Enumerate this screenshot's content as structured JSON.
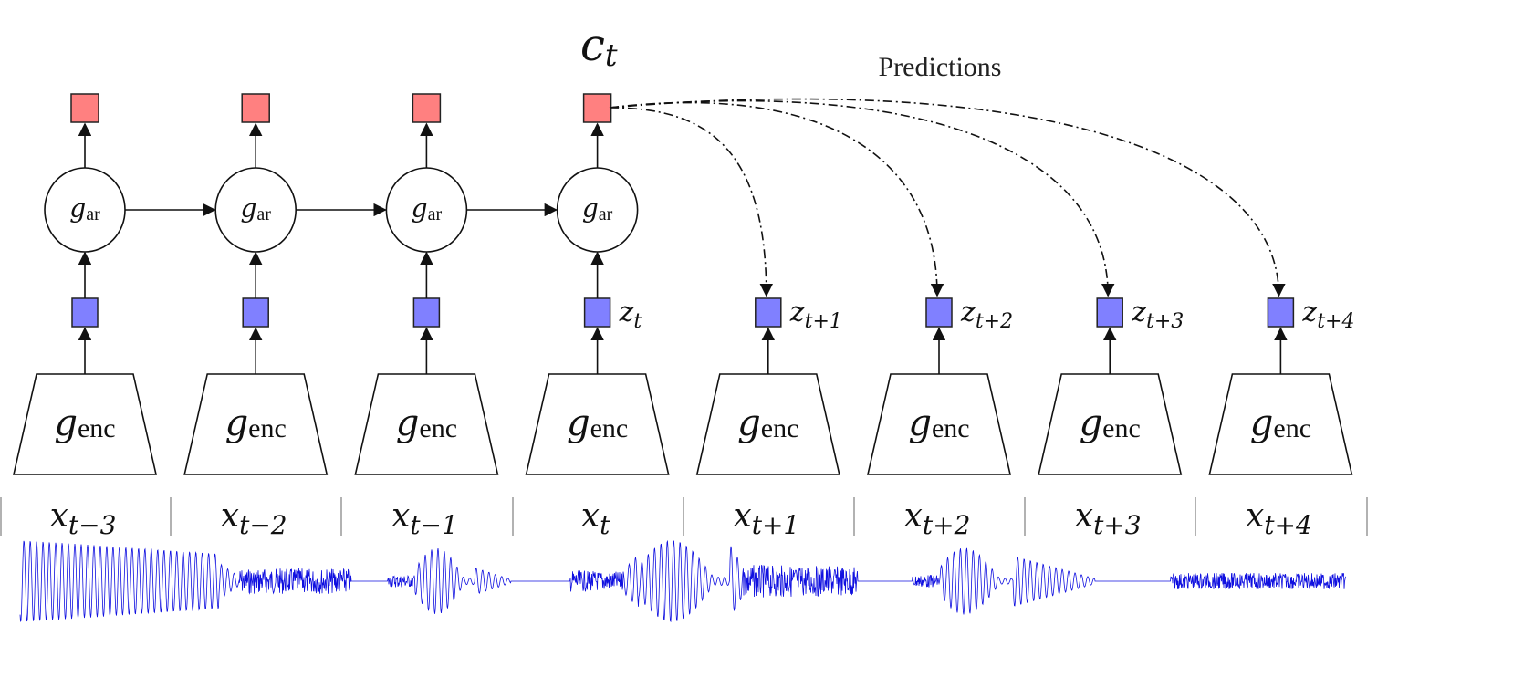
{
  "title_label": "Predictions",
  "context": {
    "symbol": "c",
    "subscript": "t"
  },
  "ar_label": {
    "symbol": "g",
    "subscript": "ar"
  },
  "enc_label": {
    "symbol": "g",
    "subscript": "enc"
  },
  "columns": [
    {
      "x_sub": "t−3",
      "z_sub": "",
      "predicted": false,
      "has_ar": true
    },
    {
      "x_sub": "t−2",
      "z_sub": "",
      "predicted": false,
      "has_ar": true
    },
    {
      "x_sub": "t−1",
      "z_sub": "",
      "predicted": false,
      "has_ar": true
    },
    {
      "x_sub": "t",
      "z_sub": "t",
      "predicted": false,
      "has_ar": true
    },
    {
      "x_sub": "t+1",
      "z_sub": "t+1",
      "predicted": true,
      "has_ar": false
    },
    {
      "x_sub": "t+2",
      "z_sub": "t+2",
      "predicted": true,
      "has_ar": false
    },
    {
      "x_sub": "t+3",
      "z_sub": "t+3",
      "predicted": true,
      "has_ar": false
    },
    {
      "x_sub": "t+4",
      "z_sub": "t+4",
      "predicted": true,
      "has_ar": false
    }
  ],
  "x_symbol": "x",
  "z_symbol": "z",
  "colors": {
    "context": "#ff8080",
    "latent": "#8080ff",
    "waveform": "#1010e0",
    "stroke": "#111111"
  }
}
